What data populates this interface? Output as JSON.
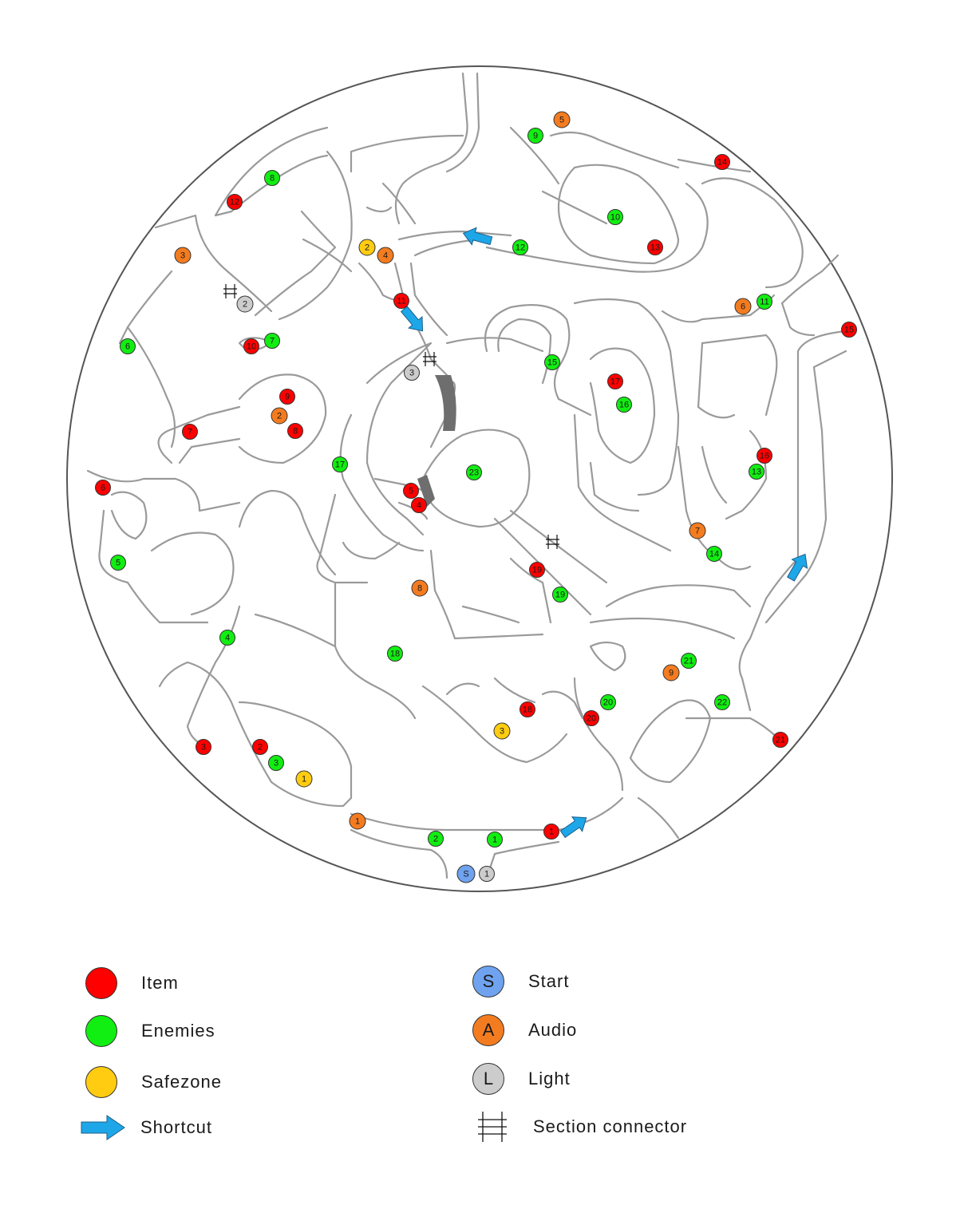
{
  "colors": {
    "item": "#ff0000",
    "enemies": "#11ee11",
    "safezone": "#ffcc11",
    "audio": "#f47c20",
    "light": "#cccccc",
    "start": "#6fa3f0",
    "shortcut": "#1ea7e8",
    "path": "#9a9a9a"
  },
  "markers": {
    "items": [
      "1",
      "2",
      "3",
      "4",
      "5",
      "6",
      "7",
      "8",
      "9",
      "10",
      "11",
      "12",
      "13",
      "14",
      "15",
      "16",
      "17",
      "18",
      "19",
      "20",
      "21"
    ],
    "enemies": [
      "1",
      "2",
      "3",
      "4",
      "5",
      "6",
      "7",
      "8",
      "9",
      "10",
      "11",
      "12",
      "13",
      "14",
      "15",
      "16",
      "17",
      "18",
      "19",
      "20",
      "21",
      "22",
      "23"
    ],
    "safezones": [
      "1",
      "2",
      "3"
    ],
    "audio": [
      "1",
      "2",
      "3",
      "4",
      "5",
      "6",
      "7",
      "8",
      "9"
    ],
    "lights": [
      "1",
      "2",
      "3"
    ],
    "start": "S"
  },
  "legend": {
    "item": "Item",
    "enemies": "Enemies",
    "safezone": "Safezone",
    "shortcut": "Shortcut",
    "start": "Start",
    "start_symbol": "S",
    "audio": "Audio",
    "audio_symbol": "A",
    "light": "Light",
    "light_symbol": "L",
    "section_connector": "Section connector"
  }
}
